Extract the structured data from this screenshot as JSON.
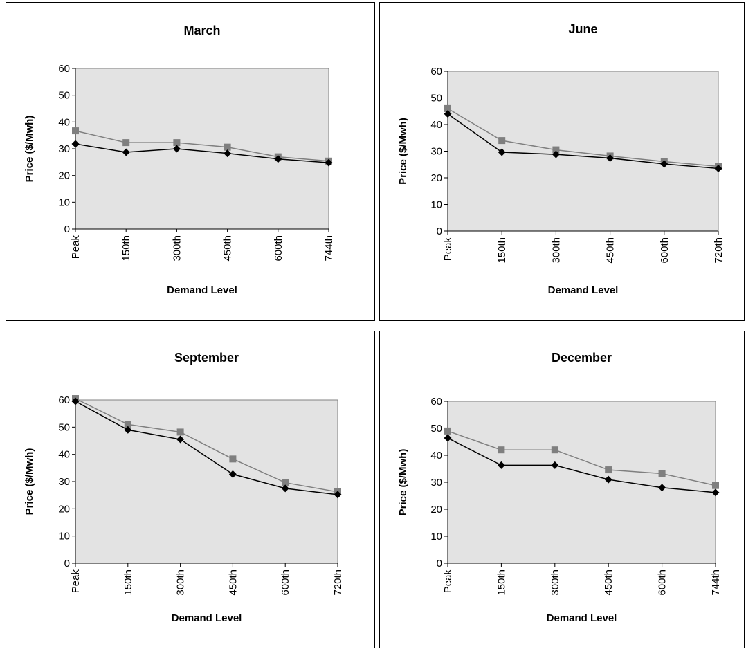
{
  "chart_data": [
    {
      "type": "line",
      "title": "March",
      "xlabel": "Demand Level",
      "ylabel": "Price ($/Mwh)",
      "categories": [
        "Peak",
        "150th",
        "300th",
        "450th",
        "600th",
        "744th"
      ],
      "ylim": [
        0,
        60
      ],
      "yticks": [
        "0",
        "10",
        "20",
        "30",
        "40",
        "50",
        "60"
      ],
      "series": [
        {
          "marker": "diamond",
          "color": "#000000",
          "values": [
            31.8,
            28.7,
            30.0,
            28.3,
            26.2,
            24.8
          ]
        },
        {
          "marker": "square",
          "color": "#7f7f7f",
          "values": [
            36.7,
            32.3,
            32.3,
            30.6,
            27.0,
            25.4
          ]
        }
      ],
      "grid": false,
      "legend": "none"
    },
    {
      "type": "line",
      "title": "June",
      "xlabel": "Demand Level",
      "ylabel": "Price ($/Mwh)",
      "categories": [
        "Peak",
        "150th",
        "300th",
        "450th",
        "600th",
        "720th"
      ],
      "ylim": [
        0,
        60
      ],
      "yticks": [
        "0",
        "10",
        "20",
        "30",
        "40",
        "50",
        "60"
      ],
      "series": [
        {
          "marker": "diamond",
          "color": "#000000",
          "values": [
            44.0,
            29.6,
            28.8,
            27.4,
            25.2,
            23.5
          ]
        },
        {
          "marker": "square",
          "color": "#7f7f7f",
          "values": [
            46.0,
            34.0,
            30.5,
            28.2,
            26.1,
            24.3
          ]
        }
      ],
      "grid": false,
      "legend": "none"
    },
    {
      "type": "line",
      "title": "September",
      "xlabel": "Demand Level",
      "ylabel": "Price ($/Mwh)",
      "categories": [
        "Peak",
        "150th",
        "300th",
        "450th",
        "600th",
        "720th"
      ],
      "ylim": [
        0,
        60
      ],
      "yticks": [
        "0",
        "10",
        "20",
        "30",
        "40",
        "50",
        "60"
      ],
      "series": [
        {
          "marker": "diamond",
          "color": "#000000",
          "values": [
            59.5,
            49.0,
            45.5,
            32.7,
            27.5,
            25.2
          ]
        },
        {
          "marker": "square",
          "color": "#7f7f7f",
          "values": [
            60.5,
            51.0,
            48.2,
            38.3,
            29.6,
            26.2
          ]
        }
      ],
      "grid": false,
      "legend": "none"
    },
    {
      "type": "line",
      "title": "December",
      "xlabel": "Demand Level",
      "ylabel": "Price ($/Mwh)",
      "categories": [
        "Peak",
        "150th",
        "300th",
        "450th",
        "600th",
        "744th"
      ],
      "ylim": [
        0,
        60
      ],
      "yticks": [
        "0",
        "10",
        "20",
        "30",
        "40",
        "50",
        "60"
      ],
      "series": [
        {
          "marker": "diamond",
          "color": "#000000",
          "values": [
            46.4,
            36.3,
            36.3,
            31.0,
            28.0,
            26.2
          ]
        },
        {
          "marker": "square",
          "color": "#7f7f7f",
          "values": [
            49.0,
            42.0,
            42.0,
            34.6,
            33.2,
            28.8
          ]
        }
      ],
      "grid": false,
      "legend": "none"
    }
  ],
  "colors": {
    "plot_background": "#e3e3e3",
    "plot_border": "#808080"
  }
}
